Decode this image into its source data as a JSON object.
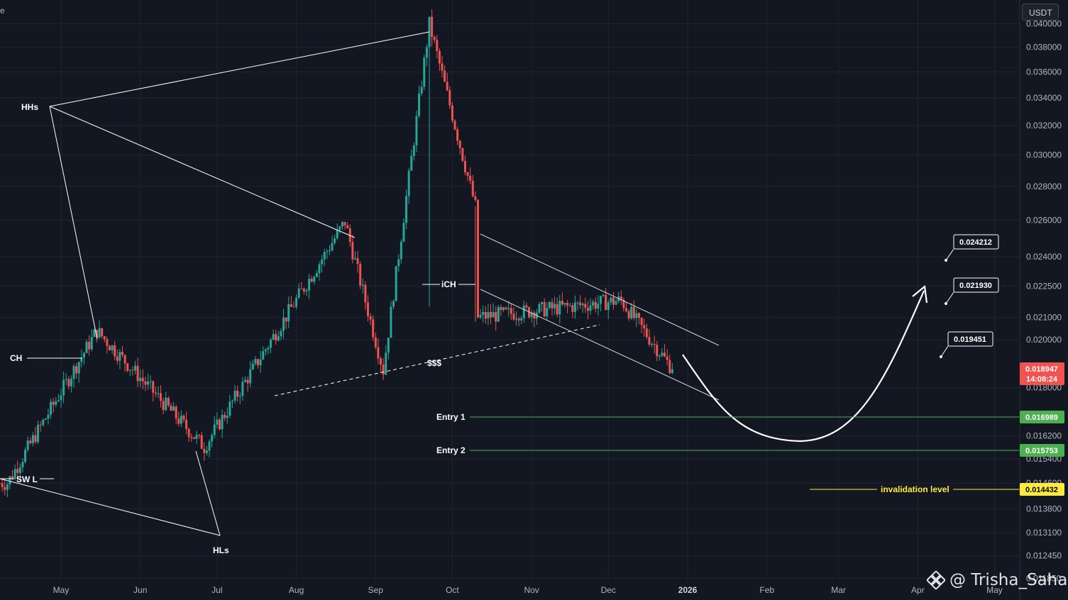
{
  "header": {
    "corner_text": "e",
    "currency": "USDT"
  },
  "watermark": {
    "text": "@ Trisha_Saha",
    "icon": "binance-logo-icon"
  },
  "colors": {
    "background": "#131722",
    "grid": "#1f2431",
    "up": "#26a69a",
    "down": "#ef5350",
    "line": "#ffffff",
    "entry": "#4caf50",
    "invalidation": "#ffeb3b",
    "price_tag": "#f05350"
  },
  "chart_data": {
    "type": "candlestick",
    "title": "",
    "y_scale": "log",
    "ylim": [
      0.0118,
      0.0415
    ],
    "x_ticks": [
      "May",
      "Jun",
      "Jul",
      "Aug",
      "Sep",
      "Oct",
      "Nov",
      "Dec",
      "2026",
      "Feb",
      "Mar",
      "Apr",
      "May"
    ],
    "y_ticks": [
      "0.040000",
      "0.038000",
      "0.036000",
      "0.034000",
      "0.032000",
      "0.030000",
      "0.028000",
      "0.026000",
      "0.024000",
      "0.022500",
      "0.021000",
      "0.020000",
      "0.018000",
      "0.016200",
      "0.015400",
      "0.014600",
      "0.013800",
      "0.013100",
      "0.012450",
      "0.011850"
    ],
    "last_price": {
      "price": "0.018947",
      "countdown": "14:08:24"
    },
    "key_points": [
      {
        "date": "2025-04-10",
        "price": 0.0146,
        "note": "low near SW L"
      },
      {
        "date": "2025-05-15",
        "price": 0.0204,
        "note": "May high"
      },
      {
        "date": "2025-06-26",
        "price": 0.0158,
        "note": "June low"
      },
      {
        "date": "2025-08-20",
        "price": 0.0259,
        "note": "August high"
      },
      {
        "date": "2025-09-04",
        "price": 0.0187,
        "note": "September low"
      },
      {
        "date": "2025-09-22",
        "price": 0.04,
        "note": "spike high"
      },
      {
        "date": "2025-10-10",
        "price": 0.0268,
        "note": "October high"
      },
      {
        "date": "2025-10-10",
        "price": 0.021,
        "note": "October wick low"
      },
      {
        "date": "2025-12-06",
        "price": 0.0218,
        "note": "December bounce"
      },
      {
        "date": "2025-12-25",
        "price": 0.0189,
        "note": "last price"
      }
    ],
    "annotations": [
      {
        "text": "HHs"
      },
      {
        "text": "HLs"
      },
      {
        "text": "CH"
      },
      {
        "text": "SW L"
      },
      {
        "text": "iCH"
      },
      {
        "text": "$$$"
      }
    ],
    "horizontal_levels": [
      {
        "label": "Entry 1",
        "price": "0.016989",
        "role": "entry"
      },
      {
        "label": "Entry 2",
        "price": "0.015753",
        "role": "entry"
      },
      {
        "label": "invalidation level",
        "price": "0.014432",
        "role": "invalidation"
      }
    ],
    "targets": [
      "0.024212",
      "0.021930",
      "0.019451"
    ]
  }
}
